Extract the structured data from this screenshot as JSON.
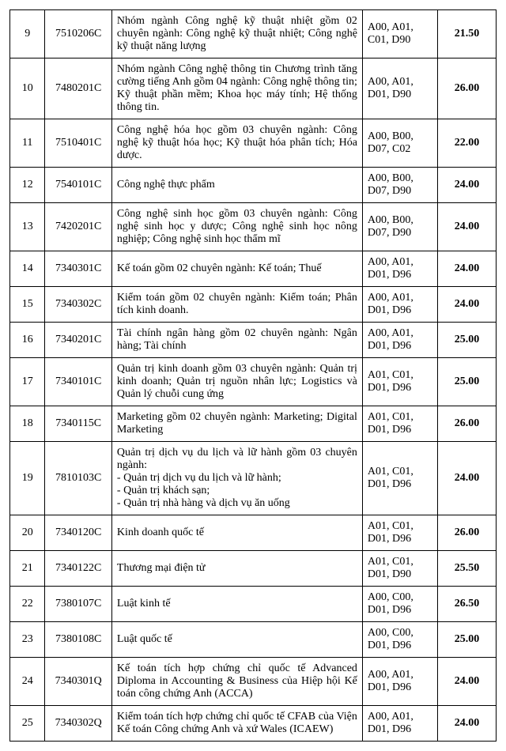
{
  "rows": [
    {
      "no": "9",
      "code": "7510206C",
      "desc": "Nhóm ngành Công nghệ kỹ thuật nhiệt gồm 02 chuyên ngành: Công nghệ kỹ thuật nhiệt; Công nghệ kỹ thuật năng lượng",
      "combo": "A00, A01, C01, D90",
      "score": "21.50"
    },
    {
      "no": "10",
      "code": "7480201C",
      "desc": "Nhóm ngành Công nghệ thông tin Chương trình tăng cường tiếng Anh gồm 04 ngành: Công nghệ thông tin; Kỹ thuật phần mềm; Khoa học máy tính; Hệ thống thông tin.",
      "combo": "A00, A01, D01, D90",
      "score": "26.00"
    },
    {
      "no": "11",
      "code": "7510401C",
      "desc": "Công nghệ hóa học gồm 03 chuyên ngành: Công nghệ kỹ thuật hóa học; Kỹ thuật hóa phân tích; Hóa dược.",
      "combo": "A00, B00, D07, C02",
      "score": "22.00"
    },
    {
      "no": "12",
      "code": "7540101C",
      "desc": "Công nghệ thực phẩm",
      "combo": "A00, B00, D07, D90",
      "score": "24.00"
    },
    {
      "no": "13",
      "code": "7420201C",
      "desc": "Công nghệ sinh học gồm 03 chuyên ngành: Công nghệ sinh học y dược; Công nghệ sinh học nông nghiệp; Công nghệ sinh học thẩm mĩ",
      "combo": "A00, B00, D07, D90",
      "score": "24.00"
    },
    {
      "no": "14",
      "code": "7340301C",
      "desc": "Kế toán gồm 02 chuyên ngành: Kế toán; Thuế",
      "combo": "A00, A01, D01, D96",
      "score": "24.00"
    },
    {
      "no": "15",
      "code": "7340302C",
      "desc": "Kiểm toán gồm 02 chuyên ngành: Kiểm toán; Phân tích kinh doanh.",
      "combo": "A00, A01, D01, D96",
      "score": "24.00"
    },
    {
      "no": "16",
      "code": "7340201C",
      "desc": "Tài chính ngân hàng gồm 02 chuyên ngành: Ngân hàng; Tài chính",
      "combo": "A00, A01, D01, D96",
      "score": "25.00"
    },
    {
      "no": "17",
      "code": "7340101C",
      "desc": "Quản trị kinh doanh gồm 03 chuyên ngành: Quản trị kinh doanh; Quản trị nguồn nhân lực; Logistics và Quản lý chuỗi cung ứng",
      "combo": "A01, C01, D01, D96",
      "score": "25.00"
    },
    {
      "no": "18",
      "code": "7340115C",
      "desc": "Marketing gồm 02 chuyên ngành: Marketing; Digital Marketing",
      "combo": "A01, C01, D01, D96",
      "score": "26.00"
    },
    {
      "no": "19",
      "code": "7810103C",
      "desc": "Quản trị dịch vụ du lịch và lữ hành gồm 03 chuyên ngành:\n- Quản trị dịch vụ du lịch và lữ hành;\n- Quản trị khách sạn;\n- Quản trị nhà hàng và dịch vụ ăn uống",
      "combo": "A01, C01, D01, D96",
      "score": "24.00"
    },
    {
      "no": "20",
      "code": "7340120C",
      "desc": "Kinh doanh quốc tế",
      "combo": "A01, C01, D01, D96",
      "score": "26.00"
    },
    {
      "no": "21",
      "code": "7340122C",
      "desc": "Thương mại điện tử",
      "combo": "A01, C01, D01, D90",
      "score": "25.50"
    },
    {
      "no": "22",
      "code": "7380107C",
      "desc": "Luật kinh tế",
      "combo": "A00, C00, D01, D96",
      "score": "26.50"
    },
    {
      "no": "23",
      "code": "7380108C",
      "desc": "Luật quốc tế",
      "combo": "A00, C00, D01, D96",
      "score": "25.00"
    },
    {
      "no": "24",
      "code": "7340301Q",
      "desc": "Kế toán tích hợp chứng chỉ quốc tế Advanced Diploma in Accounting & Business của Hiệp hội Kế toán công chứng Anh (ACCA)",
      "combo": "A00, A01, D01, D96",
      "score": "24.00"
    },
    {
      "no": "25",
      "code": "7340302Q",
      "desc": "Kiểm toán tích hợp chứng chỉ quốc tế CFAB của Viện Kế toán Công chứng Anh và xứ Wales (ICAEW)",
      "combo": "A00, A01, D01, D96",
      "score": "24.00"
    }
  ]
}
